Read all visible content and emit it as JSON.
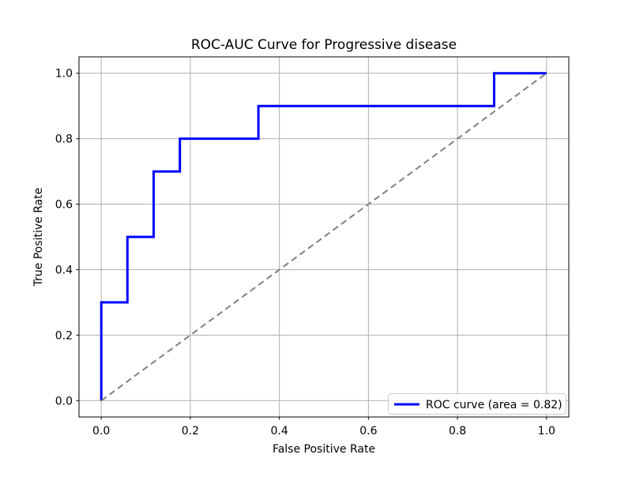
{
  "chart_data": {
    "type": "line",
    "title": "ROC-AUC Curve for Progressive disease",
    "xlabel": "False Positive Rate",
    "ylabel": "True Positive Rate",
    "xlim": [
      -0.05,
      1.05
    ],
    "ylim": [
      -0.05,
      1.05
    ],
    "x_tick_values": [
      0.0,
      0.2,
      0.4,
      0.6,
      0.8,
      1.0
    ],
    "x_tick_labels": [
      "0.0",
      "0.2",
      "0.4",
      "0.6",
      "0.8",
      "1.0"
    ],
    "y_tick_values": [
      0.0,
      0.2,
      0.4,
      0.6,
      0.8,
      1.0
    ],
    "y_tick_labels": [
      "0.0",
      "0.2",
      "0.4",
      "0.6",
      "0.8",
      "1.0"
    ],
    "grid": true,
    "auc": 0.82,
    "series": [
      {
        "name": "ROC curve (area = 0.82)",
        "kind": "step",
        "color": "#0000ff",
        "line_style": "solid",
        "line_width": 3,
        "x": [
          0.0,
          0.0,
          0.0588,
          0.0588,
          0.1176,
          0.1176,
          0.1765,
          0.1765,
          0.3529,
          0.3529,
          0.8824,
          0.8824,
          1.0
        ],
        "y": [
          0.0,
          0.3,
          0.3,
          0.5,
          0.5,
          0.7,
          0.7,
          0.8,
          0.8,
          0.9,
          0.9,
          1.0,
          1.0
        ]
      },
      {
        "name": "chance diagonal",
        "kind": "line",
        "color": "#808080",
        "line_style": "dashed",
        "line_width": 2,
        "x": [
          0.0,
          1.0
        ],
        "y": [
          0.0,
          1.0
        ]
      }
    ],
    "legend": {
      "position": "lower right",
      "entries": [
        {
          "label": "ROC curve (area = 0.82)",
          "color": "#0000ff"
        }
      ]
    },
    "colors": {
      "background": "#ffffff",
      "grid": "#b0b0b0",
      "spine": "#000000",
      "text": "#000000",
      "legend_border": "#cccccc",
      "legend_fill": "#ffffff"
    }
  }
}
